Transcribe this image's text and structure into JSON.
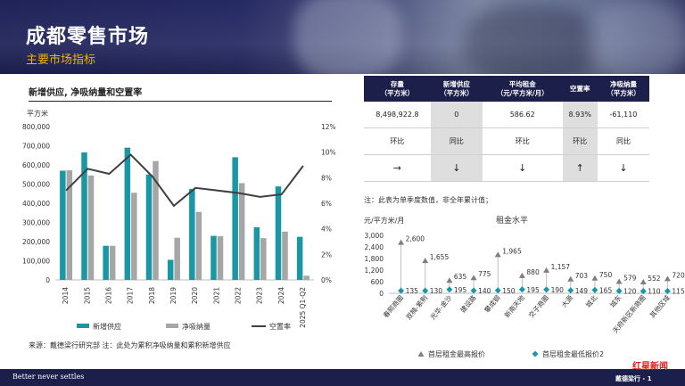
{
  "page": {
    "title": "成都零售市场",
    "subtitle": "主要市场指标",
    "chart_heading": "新增供应, 净吸纳量和空置率",
    "source": "来源：戴德梁行研究部    注：此处为累积净吸纳量和累积新增供应",
    "table_note": "注：此表为单季度数值，非全年累计值；",
    "footer_left": "Better never settles",
    "footer_right": "戴德梁行 - 1",
    "footer_logo": "红星新闻"
  },
  "colors": {
    "supply": "#1a97a4",
    "absorption": "#a6a6a6",
    "vacancy": "#404040",
    "banner": "#1f2358",
    "accent": "#f0b400",
    "high_marker": "#7f7f7f",
    "low_marker": "#1a97a4"
  },
  "table": {
    "headers": [
      "存量\n（平方米）",
      "新增供应\n（平方米）",
      "平均租金\n（元/平方米/月）",
      "空置率",
      "净吸纳量\n（平方米）"
    ],
    "values": [
      "8,498,922.8",
      "0",
      "586.62",
      "8.93%",
      "-61,110"
    ],
    "compare_labels": [
      "环比",
      "同比",
      "环比",
      "环比",
      "同比"
    ],
    "trends": [
      "→",
      "↓",
      "↓",
      "↑",
      "↓"
    ],
    "shaded_columns": [
      1,
      3
    ]
  },
  "chart_data": [
    {
      "type": "bar",
      "title": "",
      "ylabel": "平方米",
      "categories": [
        "2014",
        "2015",
        "2016",
        "2017",
        "2018",
        "2019",
        "2020",
        "2021",
        "2022",
        "2023",
        "2024",
        "2025 Q1-Q2"
      ],
      "ylim": [
        0,
        800000
      ],
      "yticks": [
        "0",
        "100,000",
        "200,000",
        "300,000",
        "400,000",
        "500,000",
        "600,000",
        "700,000",
        "800,000"
      ],
      "y2lim": [
        0,
        12
      ],
      "y2ticks": [
        "0%",
        "2%",
        "4%",
        "6%",
        "8%",
        "10%",
        "12%"
      ],
      "series": [
        {
          "name": "新增供应",
          "type": "bar",
          "axis": "left",
          "values": [
            570000,
            665000,
            178000,
            690000,
            550000,
            105000,
            475000,
            230000,
            640000,
            275000,
            488000,
            225000
          ]
        },
        {
          "name": "净吸纳量",
          "type": "bar",
          "axis": "left",
          "values": [
            572000,
            545000,
            178000,
            455000,
            620000,
            220000,
            355000,
            228000,
            505000,
            218000,
            252000,
            22000
          ]
        },
        {
          "name": "空置率",
          "type": "line",
          "axis": "right",
          "values": [
            7.0,
            8.7,
            8.3,
            9.8,
            8.1,
            5.8,
            7.2,
            7.0,
            6.8,
            6.5,
            6.7,
            8.93
          ]
        }
      ],
      "legend": "bottom"
    },
    {
      "type": "scatter",
      "title": "租金水平",
      "ylabel": "元/平方米/月",
      "ylim": [
        0,
        3000
      ],
      "yticks": [
        "0",
        "600",
        "1,200",
        "1,800",
        "2,400",
        "3,000"
      ],
      "categories": [
        "春熙商圈",
        "双楠-紫荆",
        "光华-金沙",
        "建设路",
        "攀成钢",
        "新南天地",
        "交子商圈",
        "大源",
        "城北",
        "城东",
        "天府新区新商圈",
        "其他区域"
      ],
      "series": [
        {
          "name": "首层租金最高报价",
          "marker": "triangle",
          "values": [
            2600,
            1655,
            635,
            775,
            1965,
            880,
            1157,
            703,
            750,
            579,
            552,
            720
          ]
        },
        {
          "name": "首层租金最低报价2",
          "marker": "diamond",
          "values": [
            135,
            130,
            195,
            140,
            150,
            195,
            190,
            149,
            165,
            120,
            110,
            115
          ]
        }
      ],
      "value_labels_high": [
        "2,600",
        "1,655",
        "635",
        "775",
        "1,965",
        "880",
        "1,157",
        "703",
        "750",
        "579",
        "552",
        "720"
      ],
      "value_labels_low": [
        "135",
        "130",
        "195",
        "140",
        "150",
        "195",
        "190",
        "149",
        "165",
        "120",
        "110",
        "115"
      ],
      "legend": "bottom"
    }
  ]
}
